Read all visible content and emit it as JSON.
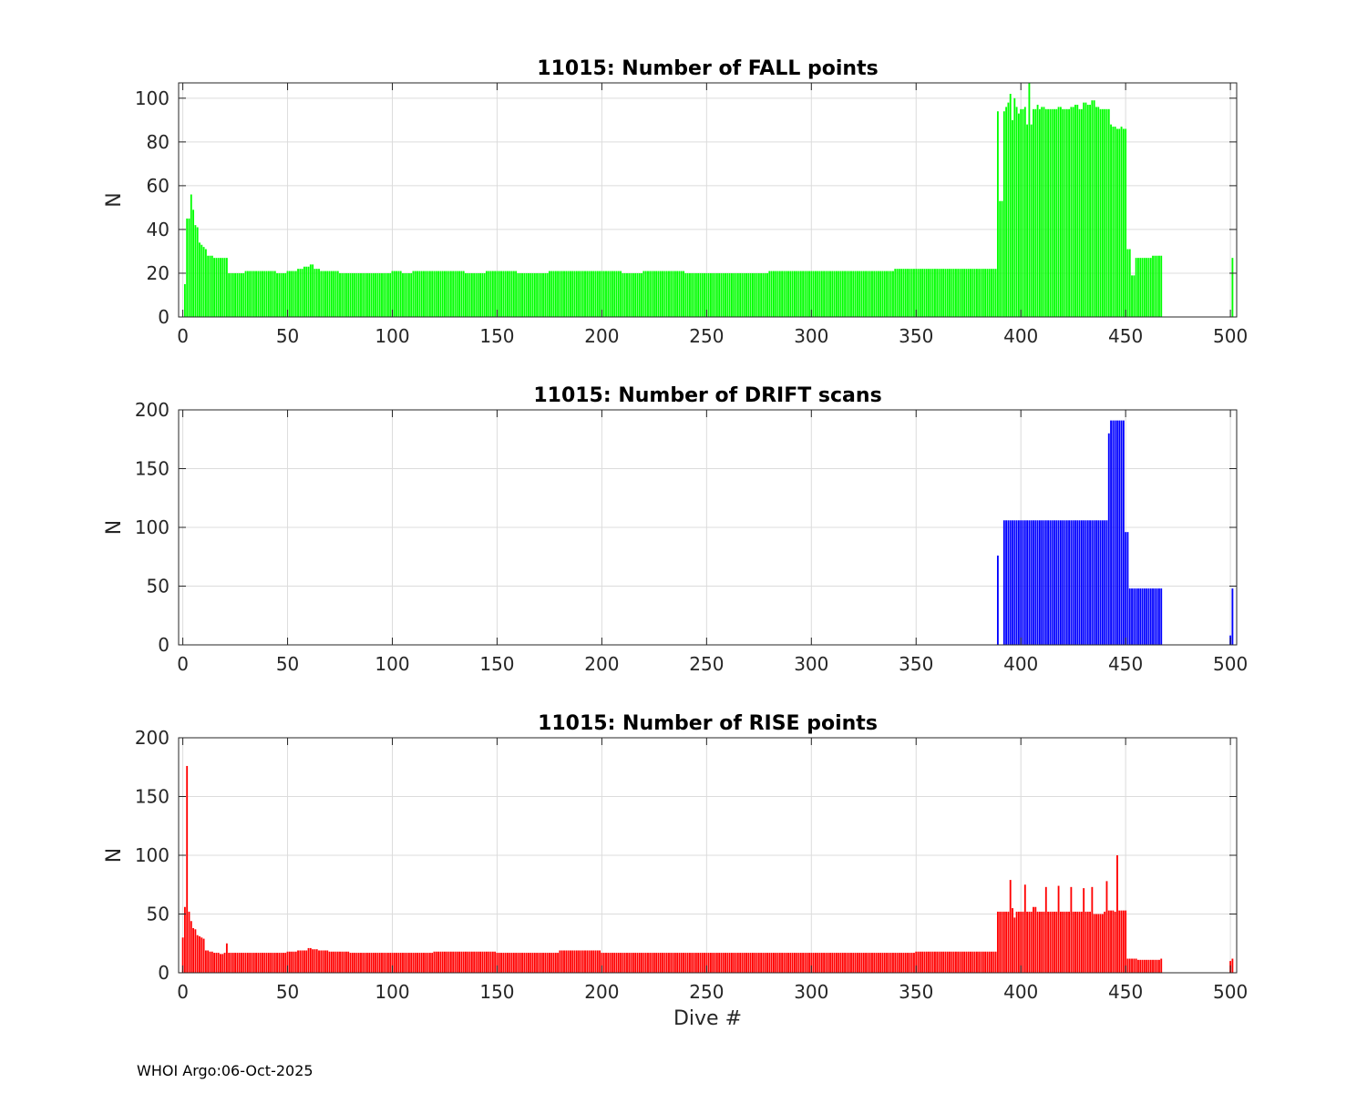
{
  "footer_text": "WHOI Argo:06-Oct-2025",
  "chart_data": [
    {
      "type": "bar",
      "title": "11015: Number of FALL points",
      "xlabel": "",
      "ylabel": "N",
      "color": "#00ff00",
      "xlim": [
        -2,
        503
      ],
      "ylim": [
        0,
        107
      ],
      "xticks": [
        0,
        50,
        100,
        150,
        200,
        250,
        300,
        350,
        400,
        450,
        500
      ],
      "yticks": [
        0,
        20,
        40,
        60,
        80,
        100
      ],
      "grid": true,
      "series": [
        {
          "x_start": 1,
          "gaps": [
            [
              468,
              500
            ]
          ],
          "points": [
            [
              1,
              15
            ],
            [
              2,
              45
            ],
            [
              3,
              45
            ],
            [
              4,
              56
            ],
            [
              5,
              49
            ],
            [
              6,
              42
            ],
            [
              7,
              41
            ],
            [
              8,
              34
            ],
            [
              9,
              33
            ],
            [
              10,
              32
            ],
            [
              11,
              31
            ],
            [
              12,
              28
            ],
            [
              13,
              28
            ],
            [
              14,
              28
            ],
            [
              15,
              27
            ],
            [
              16,
              27
            ],
            [
              17,
              27
            ],
            [
              18,
              27
            ],
            [
              19,
              27
            ],
            [
              20,
              27
            ],
            [
              21,
              27
            ],
            [
              22,
              20
            ],
            [
              25,
              20
            ],
            [
              30,
              21
            ],
            [
              45,
              20
            ],
            [
              50,
              21
            ],
            [
              55,
              22
            ],
            [
              58,
              23
            ],
            [
              61,
              24
            ],
            [
              63,
              22
            ],
            [
              66,
              21
            ],
            [
              70,
              21
            ],
            [
              75,
              20
            ],
            [
              85,
              20
            ],
            [
              95,
              20
            ],
            [
              100,
              21
            ],
            [
              105,
              20
            ],
            [
              110,
              21
            ],
            [
              120,
              21
            ],
            [
              135,
              20
            ],
            [
              145,
              21
            ],
            [
              160,
              20
            ],
            [
              175,
              21
            ],
            [
              200,
              21
            ],
            [
              210,
              20
            ],
            [
              220,
              21
            ],
            [
              240,
              20
            ],
            [
              260,
              20
            ],
            [
              280,
              21
            ],
            [
              300,
              21
            ],
            [
              330,
              21
            ],
            [
              340,
              22
            ],
            [
              350,
              22
            ],
            [
              360,
              22
            ],
            [
              388,
              22
            ],
            [
              389,
              94
            ],
            [
              390,
              53
            ],
            [
              391,
              53
            ],
            [
              392,
              94
            ],
            [
              393,
              96
            ],
            [
              394,
              98
            ],
            [
              395,
              102
            ],
            [
              396,
              90
            ],
            [
              397,
              100
            ],
            [
              398,
              96
            ],
            [
              399,
              93
            ],
            [
              400,
              95
            ],
            [
              402,
              96
            ],
            [
              403,
              88
            ],
            [
              404,
              107
            ],
            [
              405,
              88
            ],
            [
              406,
              95
            ],
            [
              408,
              97
            ],
            [
              409,
              95
            ],
            [
              410,
              96
            ],
            [
              412,
              95
            ],
            [
              418,
              96
            ],
            [
              420,
              95
            ],
            [
              424,
              96
            ],
            [
              426,
              97
            ],
            [
              428,
              95
            ],
            [
              430,
              98
            ],
            [
              432,
              97
            ],
            [
              434,
              99
            ],
            [
              436,
              96
            ],
            [
              438,
              95
            ],
            [
              440,
              95
            ],
            [
              442,
              95
            ],
            [
              443,
              88
            ],
            [
              444,
              87
            ],
            [
              446,
              86
            ],
            [
              448,
              87
            ],
            [
              449,
              86
            ],
            [
              450,
              86
            ],
            [
              451,
              31
            ],
            [
              452,
              31
            ],
            [
              453,
              19
            ],
            [
              454,
              19
            ],
            [
              455,
              27
            ],
            [
              462,
              27
            ],
            [
              463,
              28
            ],
            [
              465,
              28
            ],
            [
              466,
              28
            ],
            [
              467,
              28
            ],
            [
              501,
              27
            ]
          ]
        }
      ]
    },
    {
      "type": "bar",
      "title": "11015: Number of DRIFT scans",
      "xlabel": "",
      "ylabel": "N",
      "color": "#0000ff",
      "xlim": [
        -2,
        503
      ],
      "ylim": [
        0,
        200
      ],
      "xticks": [
        0,
        50,
        100,
        150,
        200,
        250,
        300,
        350,
        400,
        450,
        500
      ],
      "yticks": [
        0,
        50,
        100,
        150,
        200
      ],
      "grid": true,
      "series": [
        {
          "x_start": 389,
          "gaps": [
            [
              390,
              391
            ],
            [
              468,
              499
            ]
          ],
          "points": [
            [
              389,
              76
            ],
            [
              392,
              106
            ],
            [
              441,
              106
            ],
            [
              442,
              180
            ],
            [
              443,
              191
            ],
            [
              449,
              191
            ],
            [
              450,
              96
            ],
            [
              451,
              96
            ],
            [
              452,
              48
            ],
            [
              467,
              48
            ],
            [
              500,
              8
            ],
            [
              501,
              48
            ]
          ]
        }
      ]
    },
    {
      "type": "bar",
      "title": "11015: Number of RISE points",
      "xlabel": "Dive #",
      "ylabel": "N",
      "color": "#ff0000",
      "xlim": [
        -2,
        503
      ],
      "ylim": [
        0,
        200
      ],
      "xticks": [
        0,
        50,
        100,
        150,
        200,
        250,
        300,
        350,
        400,
        450,
        500
      ],
      "yticks": [
        0,
        50,
        100,
        150,
        200
      ],
      "grid": true,
      "series": [
        {
          "x_start": 0,
          "gaps": [
            [
              468,
              499
            ]
          ],
          "points": [
            [
              0,
              30
            ],
            [
              1,
              56
            ],
            [
              2,
              176
            ],
            [
              3,
              52
            ],
            [
              4,
              44
            ],
            [
              5,
              38
            ],
            [
              6,
              37
            ],
            [
              7,
              32
            ],
            [
              8,
              31
            ],
            [
              9,
              30
            ],
            [
              10,
              29
            ],
            [
              11,
              19
            ],
            [
              12,
              19
            ],
            [
              13,
              18
            ],
            [
              15,
              17
            ],
            [
              18,
              16
            ],
            [
              20,
              17
            ],
            [
              21,
              25
            ],
            [
              22,
              17
            ],
            [
              30,
              17
            ],
            [
              40,
              17
            ],
            [
              50,
              18
            ],
            [
              55,
              19
            ],
            [
              60,
              21
            ],
            [
              62,
              20
            ],
            [
              65,
              19
            ],
            [
              70,
              18
            ],
            [
              80,
              17
            ],
            [
              100,
              17
            ],
            [
              120,
              18
            ],
            [
              150,
              17
            ],
            [
              180,
              19
            ],
            [
              200,
              17
            ],
            [
              250,
              17
            ],
            [
              300,
              17
            ],
            [
              350,
              18
            ],
            [
              388,
              18
            ],
            [
              389,
              52
            ],
            [
              394,
              52
            ],
            [
              395,
              79
            ],
            [
              396,
              55
            ],
            [
              397,
              47
            ],
            [
              398,
              52
            ],
            [
              400,
              52
            ],
            [
              402,
              75
            ],
            [
              403,
              52
            ],
            [
              406,
              56
            ],
            [
              408,
              52
            ],
            [
              412,
              73
            ],
            [
              413,
              52
            ],
            [
              418,
              74
            ],
            [
              419,
              52
            ],
            [
              424,
              73
            ],
            [
              425,
              52
            ],
            [
              430,
              72
            ],
            [
              431,
              52
            ],
            [
              434,
              73
            ],
            [
              435,
              50
            ],
            [
              438,
              50
            ],
            [
              440,
              52
            ],
            [
              441,
              78
            ],
            [
              442,
              53
            ],
            [
              445,
              52
            ],
            [
              446,
              100
            ],
            [
              447,
              53
            ],
            [
              450,
              53
            ],
            [
              451,
              12
            ],
            [
              455,
              12
            ],
            [
              456,
              11
            ],
            [
              467,
              12
            ],
            [
              500,
              10
            ],
            [
              501,
              12
            ]
          ]
        }
      ]
    }
  ]
}
